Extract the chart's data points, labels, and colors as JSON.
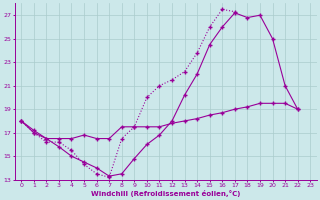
{
  "background_color": "#cce8ea",
  "grid_color": "#aacccc",
  "line_color": "#990099",
  "xlim": [
    -0.5,
    23.5
  ],
  "ylim": [
    13,
    28
  ],
  "yticks": [
    13,
    15,
    17,
    19,
    21,
    23,
    25,
    27
  ],
  "xticks": [
    0,
    1,
    2,
    3,
    4,
    5,
    6,
    7,
    8,
    9,
    10,
    11,
    12,
    13,
    14,
    15,
    16,
    17,
    18,
    19,
    20,
    21,
    22,
    23
  ],
  "xlabel": "Windchill (Refroidissement éolien,°C)",
  "curve1_x": [
    0,
    1,
    2,
    3,
    4,
    5,
    6,
    7,
    8,
    9,
    10,
    11,
    12,
    13,
    14,
    15,
    16,
    17,
    18,
    19,
    20,
    21,
    22,
    23
  ],
  "curve1_y": [
    18.0,
    17.0,
    16.2,
    16.2,
    15.5,
    14.3,
    13.5,
    13.2,
    16.5,
    17.5,
    20.0,
    21.0,
    21.5,
    22.2,
    23.8,
    26.0,
    27.5,
    27.3,
    null,
    null,
    null,
    null,
    null,
    null
  ],
  "curve2_x": [
    0,
    1,
    2,
    3,
    4,
    5,
    6,
    7,
    8,
    9,
    10,
    11,
    12,
    13,
    14,
    15,
    16,
    17,
    18,
    19,
    20,
    21,
    22,
    23
  ],
  "curve2_y": [
    18.0,
    17.0,
    16.5,
    15.8,
    15.0,
    14.5,
    14.0,
    13.3,
    13.5,
    14.8,
    16.0,
    16.8,
    18.0,
    20.2,
    22.0,
    24.5,
    26.0,
    27.2,
    26.8,
    27.0,
    25.0,
    21.0,
    19.0,
    null
  ],
  "curve3_x": [
    0,
    1,
    2,
    3,
    4,
    5,
    6,
    7,
    8,
    9,
    10,
    11,
    12,
    13,
    14,
    15,
    16,
    17,
    18,
    19,
    20,
    21,
    22,
    23
  ],
  "curve3_y": [
    18.0,
    17.2,
    16.5,
    16.5,
    16.5,
    16.8,
    16.5,
    16.5,
    17.5,
    17.5,
    17.5,
    17.5,
    17.8,
    18.0,
    18.2,
    18.5,
    18.7,
    19.0,
    19.2,
    19.5,
    19.5,
    19.5,
    19.0,
    null
  ]
}
